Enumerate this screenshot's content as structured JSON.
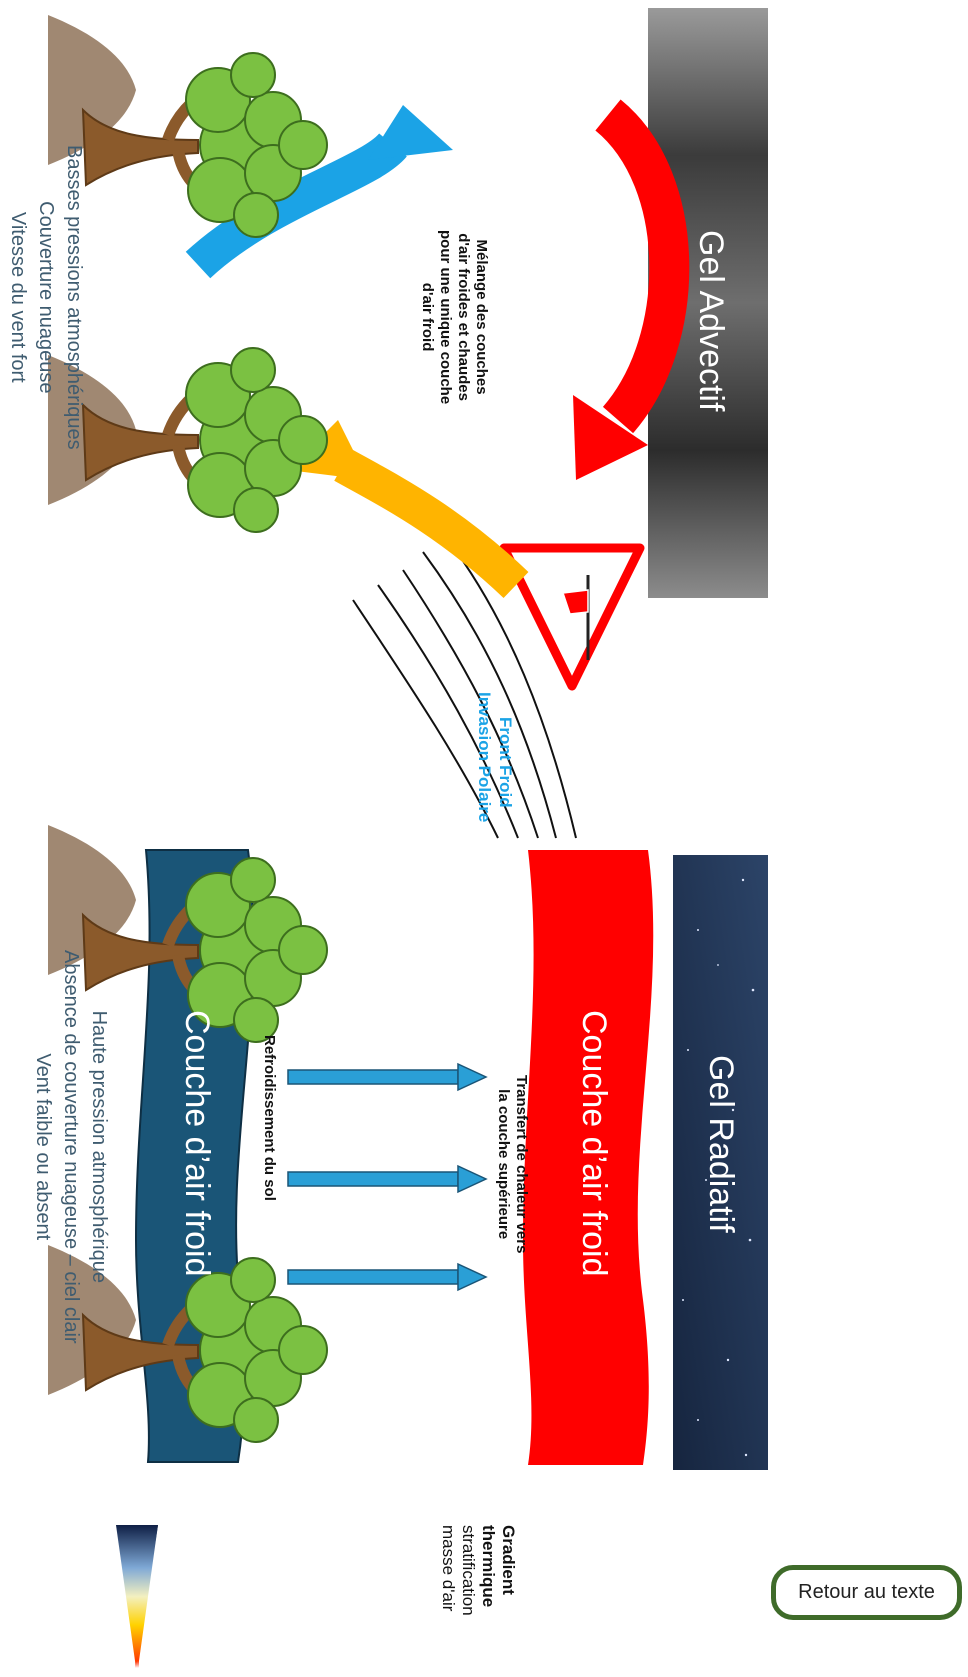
{
  "advective": {
    "title": "Gel Advectif",
    "mixing_note": [
      "Mélange des couches",
      "d'air froides et chaudes",
      "pour une unique couche",
      "d'air froid"
    ],
    "front_label": [
      "Front Froid",
      "Invasion Polaire"
    ],
    "conditions": [
      "Basses pressions atmosphériques",
      "Couverture nuageuse",
      "Vitesse du vent fort"
    ]
  },
  "radiative": {
    "title": "Gel Radiatif",
    "warm_layer_label": "Couche d’air froid",
    "cold_layer_label": "Couche d’air froid",
    "transfer_note": [
      "Transfert de chaleur vers",
      "la couche supérieure"
    ],
    "cooling_note": "Refroidissement du sol",
    "conditions": [
      "Haute pression atmosphérique",
      "Absence de couverture nuageuse – ciel clair",
      "Vent faible ou absent"
    ]
  },
  "gradient_label": [
    "Gradient",
    "thermique",
    "stratification",
    "masse d'air"
  ],
  "return_button": "Retour au texte",
  "colors": {
    "red_arrow": "#ff0000",
    "blue_arrow": "#1ba3e6",
    "yellow_arrow": "#ffb400",
    "cold_band": "#1a5577",
    "warm_band": "#ff0000",
    "night_sky": "#1f3556",
    "storm_sky": "#4a4a4a",
    "leaves": "#7bc142",
    "trunk": "#8b5a2b",
    "ground": "#a08872",
    "condition_text": "#3f5c70"
  },
  "icons": [
    "warning-triangle-icon",
    "windsock-icon",
    "vine-icon"
  ]
}
